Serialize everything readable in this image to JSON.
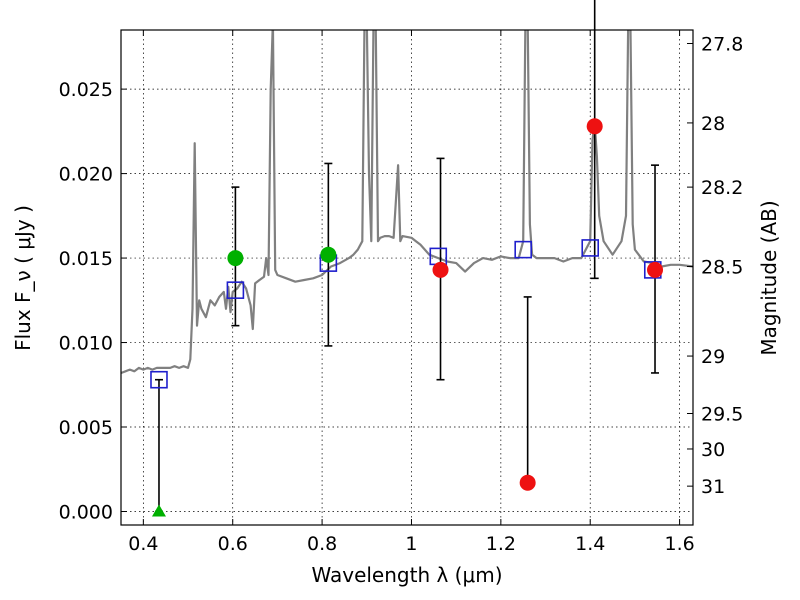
{
  "chart_data": {
    "type": "scatter",
    "xlabel": "Wavelength  λ (μm)",
    "ylabel": "Flux  F_ν  ( μJy )",
    "ylabel_right": "Magnitude (AB)",
    "xlim": [
      0.35,
      1.63
    ],
    "ylim": [
      -0.0008,
      0.0285
    ],
    "xticks": [
      0.4,
      0.6,
      0.8,
      1.0,
      1.2,
      1.4,
      1.6
    ],
    "xtick_labels": [
      "0.4",
      "0.6",
      "0.8",
      "1",
      "1.2",
      "1.4",
      "1.6"
    ],
    "yticks": [
      0.0,
      0.005,
      0.01,
      0.015,
      0.02,
      0.025
    ],
    "ytick_labels": [
      "0.000",
      "0.005",
      "0.010",
      "0.015",
      "0.020",
      "0.025"
    ],
    "right_ticks": [
      {
        "label": "27.8",
        "flux": 0.0277
      },
      {
        "label": "28",
        "flux": 0.023
      },
      {
        "label": "28.2",
        "flux": 0.0192
      },
      {
        "label": "28.5",
        "flux": 0.0145
      },
      {
        "label": "29",
        "flux": 0.0092
      },
      {
        "label": "29.5",
        "flux": 0.0058
      },
      {
        "label": "30",
        "flux": 0.0037
      },
      {
        "label": "31",
        "flux": 0.0015
      }
    ],
    "grid": true,
    "colors": {
      "template": "#808080",
      "model_box": "#1f1fcc",
      "green": "#00b000",
      "red": "#ee1111",
      "errorbar": "#000000"
    },
    "model_spectrum": [
      [
        0.35,
        0.0082
      ],
      [
        0.36,
        0.0083
      ],
      [
        0.37,
        0.0084
      ],
      [
        0.38,
        0.0083
      ],
      [
        0.39,
        0.0085
      ],
      [
        0.4,
        0.0084
      ],
      [
        0.41,
        0.0085
      ],
      [
        0.42,
        0.0084
      ],
      [
        0.43,
        0.0085
      ],
      [
        0.44,
        0.0085
      ],
      [
        0.45,
        0.0085
      ],
      [
        0.46,
        0.0085
      ],
      [
        0.47,
        0.0086
      ],
      [
        0.48,
        0.0085
      ],
      [
        0.49,
        0.0086
      ],
      [
        0.5,
        0.0085
      ],
      [
        0.505,
        0.009
      ],
      [
        0.51,
        0.012
      ],
      [
        0.515,
        0.0218
      ],
      [
        0.52,
        0.011
      ],
      [
        0.525,
        0.0125
      ],
      [
        0.53,
        0.012
      ],
      [
        0.54,
        0.0115
      ],
      [
        0.55,
        0.0125
      ],
      [
        0.56,
        0.0122
      ],
      [
        0.57,
        0.0127
      ],
      [
        0.58,
        0.013
      ],
      [
        0.585,
        0.012
      ],
      [
        0.59,
        0.0133
      ],
      [
        0.595,
        0.0118
      ],
      [
        0.6,
        0.013
      ],
      [
        0.61,
        0.0132
      ],
      [
        0.62,
        0.0136
      ],
      [
        0.63,
        0.0132
      ],
      [
        0.64,
        0.0122
      ],
      [
        0.645,
        0.0108
      ],
      [
        0.65,
        0.0135
      ],
      [
        0.66,
        0.0137
      ],
      [
        0.67,
        0.0139
      ],
      [
        0.675,
        0.015
      ],
      [
        0.68,
        0.014
      ],
      [
        0.685,
        0.025
      ],
      [
        0.69,
        0.029
      ],
      [
        0.695,
        0.0143
      ],
      [
        0.7,
        0.014
      ],
      [
        0.72,
        0.0138
      ],
      [
        0.74,
        0.0136
      ],
      [
        0.76,
        0.0137
      ],
      [
        0.78,
        0.0138
      ],
      [
        0.8,
        0.014
      ],
      [
        0.82,
        0.0145
      ],
      [
        0.84,
        0.0147
      ],
      [
        0.86,
        0.015
      ],
      [
        0.87,
        0.0152
      ],
      [
        0.88,
        0.0155
      ],
      [
        0.89,
        0.016
      ],
      [
        0.895,
        0.029
      ],
      [
        0.9,
        0.029
      ],
      [
        0.905,
        0.02
      ],
      [
        0.91,
        0.016
      ],
      [
        0.915,
        0.029
      ],
      [
        0.92,
        0.029
      ],
      [
        0.925,
        0.016
      ],
      [
        0.93,
        0.0162
      ],
      [
        0.94,
        0.0163
      ],
      [
        0.95,
        0.0163
      ],
      [
        0.96,
        0.0162
      ],
      [
        0.97,
        0.0205
      ],
      [
        0.975,
        0.016
      ],
      [
        0.98,
        0.0163
      ],
      [
        1.0,
        0.0162
      ],
      [
        1.01,
        0.016
      ],
      [
        1.02,
        0.0158
      ],
      [
        1.04,
        0.0152
      ],
      [
        1.06,
        0.015
      ],
      [
        1.08,
        0.0148
      ],
      [
        1.1,
        0.0147
      ],
      [
        1.12,
        0.0142
      ],
      [
        1.14,
        0.0147
      ],
      [
        1.16,
        0.015
      ],
      [
        1.18,
        0.0149
      ],
      [
        1.2,
        0.0151
      ],
      [
        1.22,
        0.015
      ],
      [
        1.24,
        0.015
      ],
      [
        1.25,
        0.016
      ],
      [
        1.255,
        0.029
      ],
      [
        1.26,
        0.029
      ],
      [
        1.265,
        0.017
      ],
      [
        1.27,
        0.0152
      ],
      [
        1.28,
        0.015
      ],
      [
        1.3,
        0.015
      ],
      [
        1.32,
        0.015
      ],
      [
        1.34,
        0.0148
      ],
      [
        1.36,
        0.015
      ],
      [
        1.38,
        0.015
      ],
      [
        1.4,
        0.016
      ],
      [
        1.405,
        0.022
      ],
      [
        1.41,
        0.023
      ],
      [
        1.415,
        0.021
      ],
      [
        1.42,
        0.0175
      ],
      [
        1.43,
        0.016
      ],
      [
        1.45,
        0.0152
      ],
      [
        1.47,
        0.016
      ],
      [
        1.48,
        0.0175
      ],
      [
        1.485,
        0.029
      ],
      [
        1.49,
        0.029
      ],
      [
        1.495,
        0.017
      ],
      [
        1.5,
        0.0155
      ],
      [
        1.52,
        0.0148
      ],
      [
        1.54,
        0.0147
      ],
      [
        1.56,
        0.0145
      ],
      [
        1.58,
        0.0146
      ],
      [
        1.6,
        0.0146
      ],
      [
        1.63,
        0.0145
      ]
    ],
    "model_fluxes": [
      {
        "x": 0.435,
        "y": 0.0078
      },
      {
        "x": 0.606,
        "y": 0.0131
      },
      {
        "x": 0.814,
        "y": 0.0147
      },
      {
        "x": 1.06,
        "y": 0.0151
      },
      {
        "x": 1.25,
        "y": 0.0155
      },
      {
        "x": 1.4,
        "y": 0.0156
      },
      {
        "x": 1.54,
        "y": 0.0143
      }
    ],
    "observed_green": [
      {
        "x": 0.435,
        "y": 0.0,
        "yerr_low": 0.0,
        "yerr_high": 0.0078,
        "marker": "triangle"
      },
      {
        "x": 0.606,
        "y": 0.015,
        "yerr_low": 0.004,
        "yerr_high": 0.0042,
        "marker": "circle"
      },
      {
        "x": 0.814,
        "y": 0.0152,
        "yerr_low": 0.0054,
        "yerr_high": 0.0054,
        "marker": "circle"
      }
    ],
    "observed_red": [
      {
        "x": 1.065,
        "y": 0.0143,
        "yerr_low": 0.0065,
        "yerr_high": 0.0066
      },
      {
        "x": 1.26,
        "y": 0.0017,
        "yerr_low": 0.0,
        "yerr_high": 0.011
      },
      {
        "x": 1.41,
        "y": 0.0228,
        "yerr_low": 0.009,
        "yerr_high": 0.009
      },
      {
        "x": 1.545,
        "y": 0.0143,
        "yerr_low": 0.0061,
        "yerr_high": 0.0062
      }
    ]
  }
}
